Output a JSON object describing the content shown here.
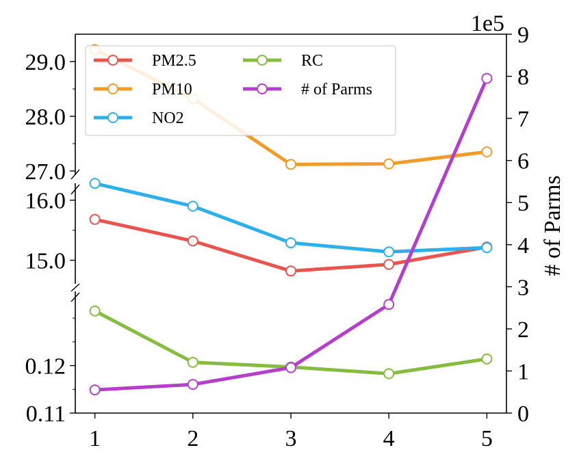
{
  "chart_data": {
    "type": "line",
    "x": [
      1,
      2,
      3,
      4,
      5
    ],
    "x_ticks": [
      "1",
      "2",
      "3",
      "4",
      "5"
    ],
    "left_axis": {
      "segments": [
        {
          "name": "top",
          "ylim": [
            26.85,
            29.5
          ],
          "ticks": [
            "27.0",
            "28.0",
            "29.0"
          ],
          "tick_values": [
            27.0,
            28.0,
            29.0
          ]
        },
        {
          "name": "middle",
          "ylim": [
            14.55,
            16.35
          ],
          "ticks": [
            "15.0",
            "16.0"
          ],
          "tick_values": [
            15.0,
            16.0
          ]
        },
        {
          "name": "bottom",
          "ylim": [
            0.11,
            0.1365
          ],
          "ticks": [
            "0.11",
            "0.12"
          ],
          "tick_values": [
            0.11,
            0.12
          ]
        }
      ]
    },
    "right_axis": {
      "ylabel": "# of Parms",
      "ylim": [
        0,
        9
      ],
      "ticks": [
        "0",
        "1",
        "2",
        "3",
        "4",
        "5",
        "6",
        "7",
        "8",
        "9"
      ],
      "multiplier": "1e5"
    },
    "series": [
      {
        "name": "PM2.5",
        "color": "#e8554e",
        "axis": "left",
        "segment": "middle",
        "values": [
          15.68,
          15.32,
          14.82,
          14.93,
          15.22
        ]
      },
      {
        "name": "PM10",
        "color": "#f09c28",
        "axis": "left",
        "segment": "top",
        "values": [
          29.22,
          28.32,
          27.12,
          27.13,
          27.35
        ]
      },
      {
        "name": "NO2",
        "color": "#2eafea",
        "axis": "left",
        "segment": "middle",
        "values": [
          16.28,
          15.9,
          15.29,
          15.14,
          15.21
        ]
      },
      {
        "name": "RC",
        "color": "#86bc40",
        "axis": "left",
        "segment": "bottom",
        "values": [
          0.1315,
          0.1207,
          0.1197,
          0.1183,
          0.1214
        ]
      },
      {
        "name": "# of Parms",
        "color": "#b43fcb",
        "axis": "right",
        "values": [
          0.55,
          0.68,
          1.08,
          2.58,
          7.95
        ]
      }
    ],
    "legend": {
      "placement": "top-left",
      "columns": 2
    }
  }
}
